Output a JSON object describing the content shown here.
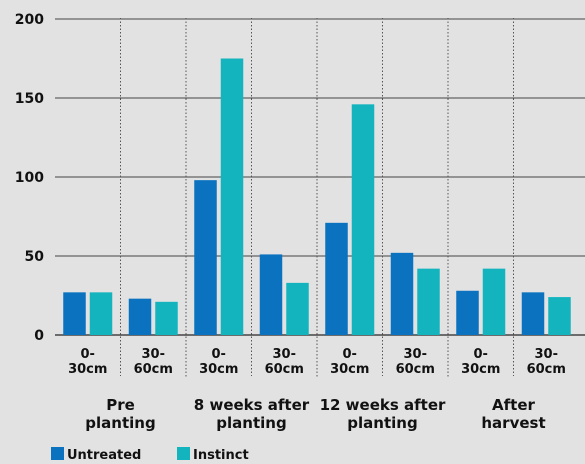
{
  "chart_data": {
    "type": "bar",
    "title": "",
    "xlabel": "",
    "ylabel": "",
    "ylim": [
      0,
      200
    ],
    "yticks": [
      0,
      50,
      100,
      150,
      200
    ],
    "grid": true,
    "legend_position": "bottom-left",
    "groups": [
      {
        "label": [
          "Pre",
          "planting"
        ],
        "categories": [
          [
            "0-",
            "30cm"
          ],
          [
            "30-",
            "60cm"
          ]
        ]
      },
      {
        "label": [
          "8 weeks after",
          "planting"
        ],
        "categories": [
          [
            "0-",
            "30cm"
          ],
          [
            "30-",
            "60cm"
          ]
        ]
      },
      {
        "label": [
          "12 weeks after",
          "planting"
        ],
        "categories": [
          [
            "0-",
            "30cm"
          ],
          [
            "30-",
            "60cm"
          ]
        ]
      },
      {
        "label": [
          "After",
          "harvest"
        ],
        "categories": [
          [
            "0-",
            "30cm"
          ],
          [
            "30-",
            "60cm"
          ]
        ]
      }
    ],
    "series": [
      {
        "name": "Untreated",
        "color": "#0a72bf",
        "values": [
          27,
          23,
          98,
          51,
          71,
          52,
          28,
          27
        ]
      },
      {
        "name": "Instinct",
        "color": "#14b4bf",
        "values": [
          27,
          21,
          175,
          33,
          146,
          42,
          42,
          24
        ]
      }
    ]
  }
}
